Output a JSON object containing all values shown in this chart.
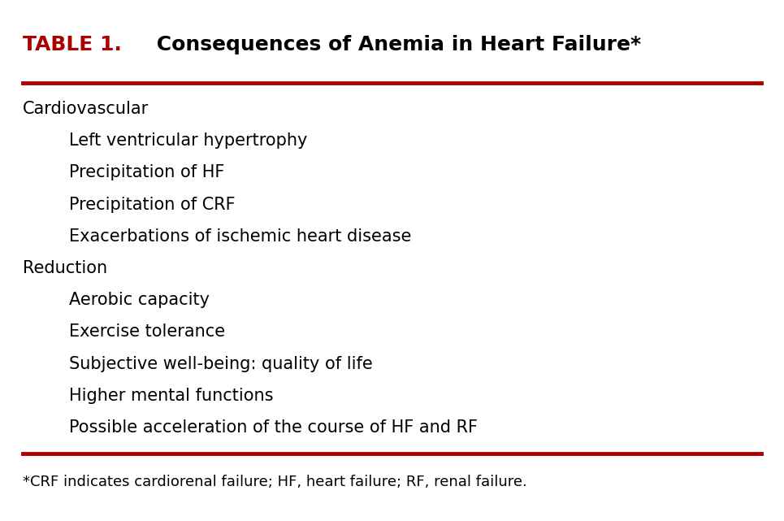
{
  "title_prefix": "TABLE 1.",
  "title_main": " Consequences of Anemia in Heart Failure*",
  "title_prefix_color": "#aa0000",
  "title_main_color": "#000000",
  "background_color": "#ffffff",
  "line_color": "#aa0000",
  "categories": [
    {
      "text": "Cardiovascular",
      "indent": false
    },
    {
      "text": "Left ventricular hypertrophy",
      "indent": true
    },
    {
      "text": "Precipitation of HF",
      "indent": true
    },
    {
      "text": "Precipitation of CRF",
      "indent": true
    },
    {
      "text": "Exacerbations of ischemic heart disease",
      "indent": true
    },
    {
      "text": "Reduction",
      "indent": false
    },
    {
      "text": "Aerobic capacity",
      "indent": true
    },
    {
      "text": "Exercise tolerance",
      "indent": true
    },
    {
      "text": "Subjective well-being: quality of life",
      "indent": true
    },
    {
      "text": "Higher mental functions",
      "indent": true
    },
    {
      "text": "Possible acceleration of the course of HF and RF",
      "indent": true
    }
  ],
  "footnote": "*CRF indicates cardiorenal failure; HF, heart failure; RF, renal failure.",
  "title_fontsize": 18,
  "body_fontsize": 15,
  "footnote_fontsize": 13
}
